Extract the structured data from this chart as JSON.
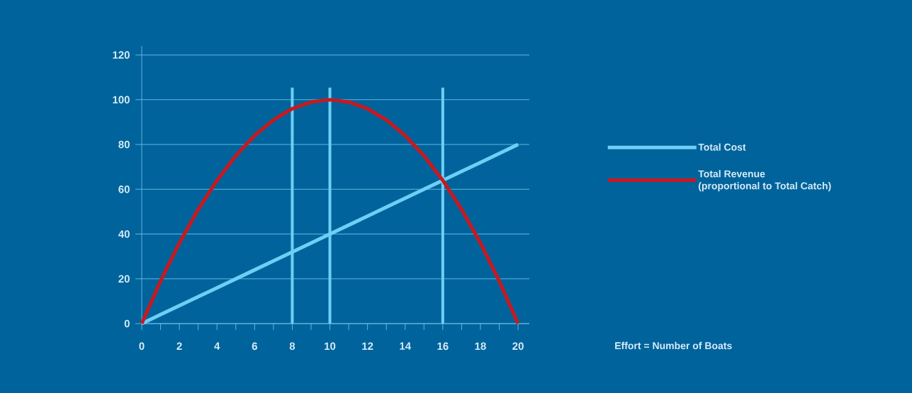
{
  "chart_data": {
    "type": "line",
    "annotations": [
      "Effort = Number of Boats"
    ],
    "x": [
      0,
      1,
      2,
      3,
      4,
      5,
      6,
      7,
      8,
      9,
      10,
      11,
      12,
      13,
      14,
      15,
      16,
      17,
      18,
      19,
      20
    ],
    "series": [
      {
        "name": "Total Cost",
        "color": "#6dcff6",
        "values": [
          0,
          4,
          8,
          12,
          16,
          20,
          24,
          28,
          32,
          36,
          40,
          44,
          48,
          52,
          56,
          60,
          64,
          68,
          72,
          76,
          80
        ]
      },
      {
        "name": "Total Revenue\n(proportional to Total Catch)",
        "color": "#c8191f",
        "values": [
          0,
          19,
          36,
          51,
          64,
          75,
          84,
          91,
          96,
          99,
          100,
          99,
          96,
          91,
          84,
          75,
          64,
          51,
          36,
          19,
          0
        ]
      }
    ],
    "xlim": [
      0,
      20.6
    ],
    "ylim": [
      0,
      124
    ],
    "xticks": [
      0,
      2,
      4,
      6,
      8,
      10,
      12,
      14,
      16,
      18,
      20
    ],
    "yticks": [
      0,
      20,
      40,
      60,
      80,
      100,
      120
    ],
    "ref_lines": [
      {
        "axis": "x",
        "value": 8,
        "color": "#6dcff6"
      },
      {
        "axis": "x",
        "value": 10,
        "color": "#6dcff6"
      },
      {
        "axis": "x",
        "value": 16,
        "color": "#6dcff6"
      }
    ],
    "grid": "y",
    "legend": "right",
    "marker": "none",
    "line_style": "solid"
  }
}
